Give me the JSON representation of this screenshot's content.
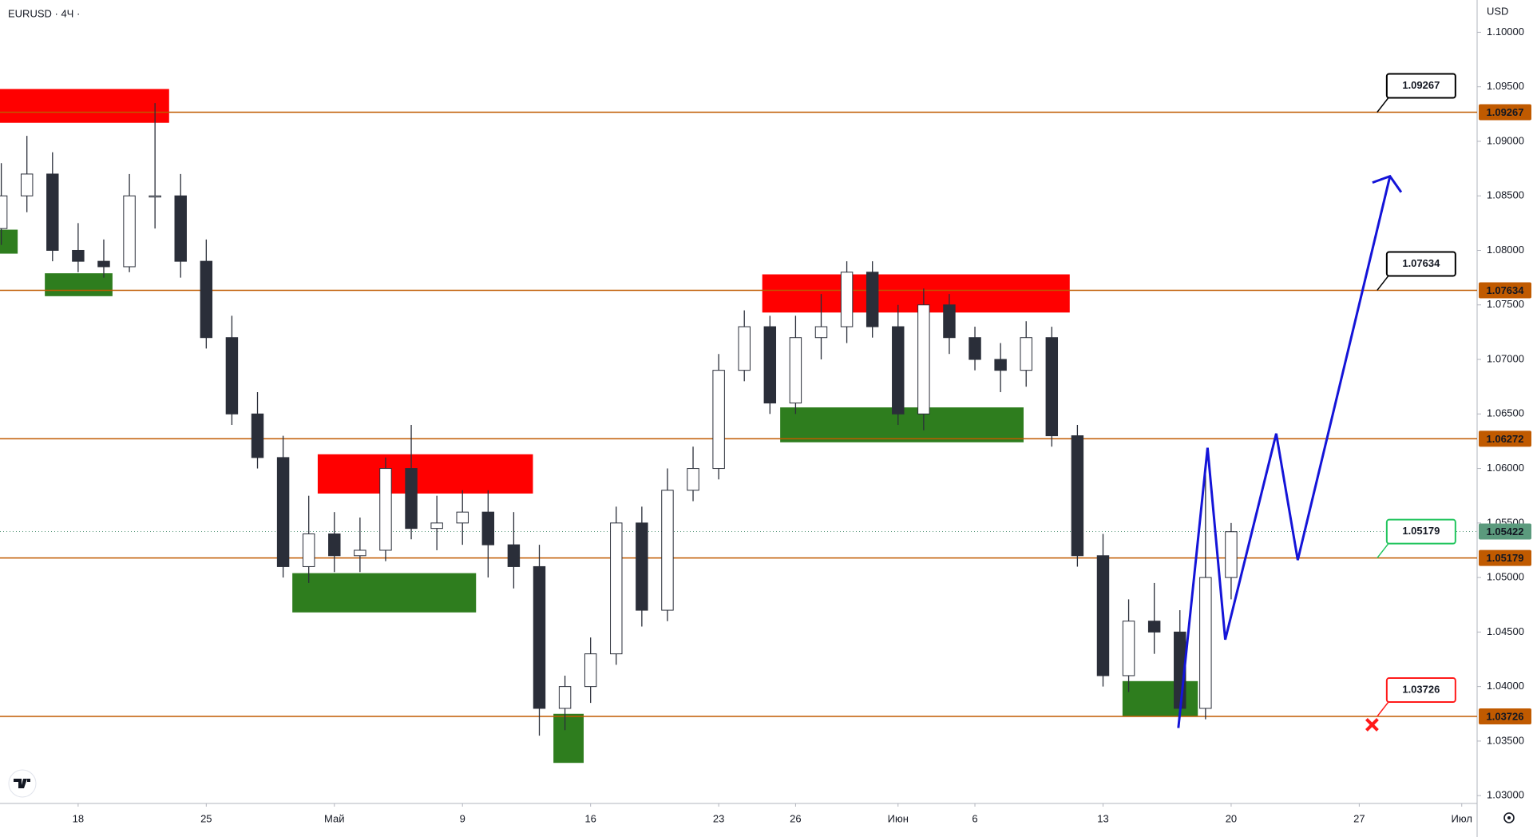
{
  "chart_data": {
    "type": "candlestick",
    "title": "EURUSD · 4Ч ·",
    "currency": "USD",
    "xlim": [
      -3.05,
      54.6
    ],
    "ylim": [
      1.02928,
      1.10296
    ],
    "xticks": [
      {
        "value": 0,
        "label": "18"
      },
      {
        "value": 5,
        "label": "25"
      },
      {
        "value": 10,
        "label": "Май"
      },
      {
        "value": 15,
        "label": "9"
      },
      {
        "value": 20,
        "label": "16"
      },
      {
        "value": 25,
        "label": "23"
      },
      {
        "value": 28,
        "label": "26"
      },
      {
        "value": 32,
        "label": "Июн"
      },
      {
        "value": 35,
        "label": "6"
      },
      {
        "value": 40,
        "label": "13"
      },
      {
        "value": 45,
        "label": "20"
      },
      {
        "value": 50,
        "label": "27"
      },
      {
        "value": 54,
        "label": "Июл"
      }
    ],
    "yticks": [
      {
        "value": 1.03,
        "label": "1.03000"
      },
      {
        "value": 1.035,
        "label": "1.03500"
      },
      {
        "value": 1.04,
        "label": "1.04000"
      },
      {
        "value": 1.045,
        "label": "1.04500"
      },
      {
        "value": 1.05,
        "label": "1.05000"
      },
      {
        "value": 1.055,
        "label": "1.05500"
      },
      {
        "value": 1.06,
        "label": "1.06000"
      },
      {
        "value": 1.065,
        "label": "1.06500"
      },
      {
        "value": 1.07,
        "label": "1.07000"
      },
      {
        "value": 1.075,
        "label": "1.07500"
      },
      {
        "value": 1.08,
        "label": "1.08000"
      },
      {
        "value": 1.085,
        "label": "1.08500"
      },
      {
        "value": 1.09,
        "label": "1.09000"
      },
      {
        "value": 1.095,
        "label": "1.09500"
      },
      {
        "value": 1.1,
        "label": "1.10000"
      }
    ],
    "candles": {
      "up_color": "#ffffff",
      "down_color": "#2a2e39",
      "wick_color": "#2a2e39",
      "x": [
        -3,
        -2,
        -1,
        0,
        1,
        2,
        3,
        4,
        5,
        6,
        7,
        8,
        9,
        10,
        11,
        12,
        13,
        14,
        15,
        16,
        17,
        18,
        19,
        20,
        21,
        22,
        23,
        24,
        25,
        26,
        27,
        28,
        29,
        30,
        31,
        32,
        33,
        34,
        35,
        36,
        37,
        38,
        39,
        40,
        41,
        42,
        43,
        44,
        45
      ],
      "open": [
        1.082,
        1.085,
        1.087,
        1.08,
        1.079,
        1.0785,
        1.085,
        1.085,
        1.079,
        1.072,
        1.065,
        1.061,
        1.051,
        1.054,
        1.052,
        1.0525,
        1.06,
        1.0545,
        1.055,
        1.056,
        1.053,
        1.051,
        1.038,
        1.04,
        1.043,
        1.055,
        1.047,
        1.058,
        1.06,
        1.069,
        1.073,
        1.066,
        1.072,
        1.073,
        1.078,
        1.073,
        1.065,
        1.075,
        1.072,
        1.07,
        1.069,
        1.072,
        1.063,
        1.052,
        1.041,
        1.046,
        1.045,
        1.038,
        1.05
      ],
      "high": [
        1.088,
        1.0905,
        1.089,
        1.0825,
        1.081,
        1.087,
        1.0935,
        1.087,
        1.081,
        1.074,
        1.067,
        1.063,
        1.0575,
        1.056,
        1.0555,
        1.061,
        1.064,
        1.0575,
        1.058,
        1.058,
        1.056,
        1.053,
        1.041,
        1.0445,
        1.0565,
        1.0565,
        1.06,
        1.062,
        1.0705,
        1.0745,
        1.074,
        1.074,
        1.076,
        1.079,
        1.079,
        1.075,
        1.0765,
        1.076,
        1.073,
        1.0715,
        1.0735,
        1.073,
        1.064,
        1.054,
        1.048,
        1.0495,
        1.047,
        1.06,
        1.055
      ],
      "low": [
        1.0805,
        1.0835,
        1.079,
        1.078,
        1.0775,
        1.078,
        1.082,
        1.0775,
        1.071,
        1.064,
        1.06,
        1.05,
        1.0495,
        1.0505,
        1.0505,
        1.0515,
        1.0535,
        1.0525,
        1.053,
        1.05,
        1.049,
        1.0355,
        1.036,
        1.0385,
        1.042,
        1.0455,
        1.046,
        1.057,
        1.059,
        1.068,
        1.065,
        1.065,
        1.07,
        1.0715,
        1.072,
        1.064,
        1.0635,
        1.0705,
        1.069,
        1.067,
        1.0675,
        1.062,
        1.051,
        1.04,
        1.0395,
        1.043,
        1.037,
        1.037,
        1.048
      ],
      "close": [
        1.085,
        1.087,
        1.08,
        1.079,
        1.0785,
        1.085,
        1.085,
        1.079,
        1.072,
        1.065,
        1.061,
        1.051,
        1.054,
        1.052,
        1.0525,
        1.06,
        1.0545,
        1.055,
        1.056,
        1.053,
        1.051,
        1.038,
        1.04,
        1.043,
        1.055,
        1.047,
        1.058,
        1.06,
        1.069,
        1.073,
        1.066,
        1.072,
        1.073,
        1.078,
        1.073,
        1.065,
        1.075,
        1.072,
        1.07,
        1.069,
        1.072,
        1.063,
        1.052,
        1.041,
        1.046,
        1.045,
        1.038,
        1.05,
        1.0542
      ]
    },
    "zones": [
      {
        "x": [
          -3.05,
          3.55
        ],
        "y": [
          1.0917,
          1.0948
        ],
        "color": "#ff0000"
      },
      {
        "x": [
          -3.05,
          -2.36
        ],
        "y": [
          1.0797,
          1.0819
        ],
        "color": "#2e7d1e"
      },
      {
        "x": [
          -1.3,
          1.34
        ],
        "y": [
          1.0758,
          1.0779
        ],
        "color": "#2e7d1e"
      },
      {
        "x": [
          9.35,
          17.75
        ],
        "y": [
          1.0577,
          1.0613
        ],
        "color": "#ff0000"
      },
      {
        "x": [
          8.36,
          15.53
        ],
        "y": [
          1.0468,
          1.0504
        ],
        "color": "#2e7d1e"
      },
      {
        "x": [
          18.55,
          19.73
        ],
        "y": [
          1.033,
          1.0375
        ],
        "color": "#2e7d1e"
      },
      {
        "x": [
          26.7,
          38.7
        ],
        "y": [
          1.0743,
          1.0778
        ],
        "color": "#ff0000"
      },
      {
        "x": [
          27.4,
          36.9
        ],
        "y": [
          1.0624,
          1.0656
        ],
        "color": "#2e7d1e"
      },
      {
        "x": [
          40.76,
          43.7
        ],
        "y": [
          1.0373,
          1.0405
        ],
        "color": "#2e7d1e"
      }
    ],
    "levels": [
      {
        "value": 1.09267,
        "callout": "#000000"
      },
      {
        "value": 1.07634,
        "callout": "#000000"
      },
      {
        "value": 1.06272
      },
      {
        "value": 1.05179,
        "callout": "#22c55e"
      },
      {
        "value": 1.03726,
        "callout": "#ff1a1a"
      }
    ],
    "level_color": "#c05a00",
    "last_price": 1.05422,
    "last_price_color": "#5b9a7d",
    "forecast": {
      "color": "#1414d8",
      "x": [
        42.94,
        44.08,
        44.77,
        46.76,
        47.6,
        51.2
      ],
      "values": [
        1.0362,
        1.0619,
        1.0443,
        1.0632,
        1.0516,
        1.0868
      ]
    },
    "stop_marker": {
      "x": 50.5,
      "value": 1.0365,
      "color": "#ff1a1a"
    }
  }
}
